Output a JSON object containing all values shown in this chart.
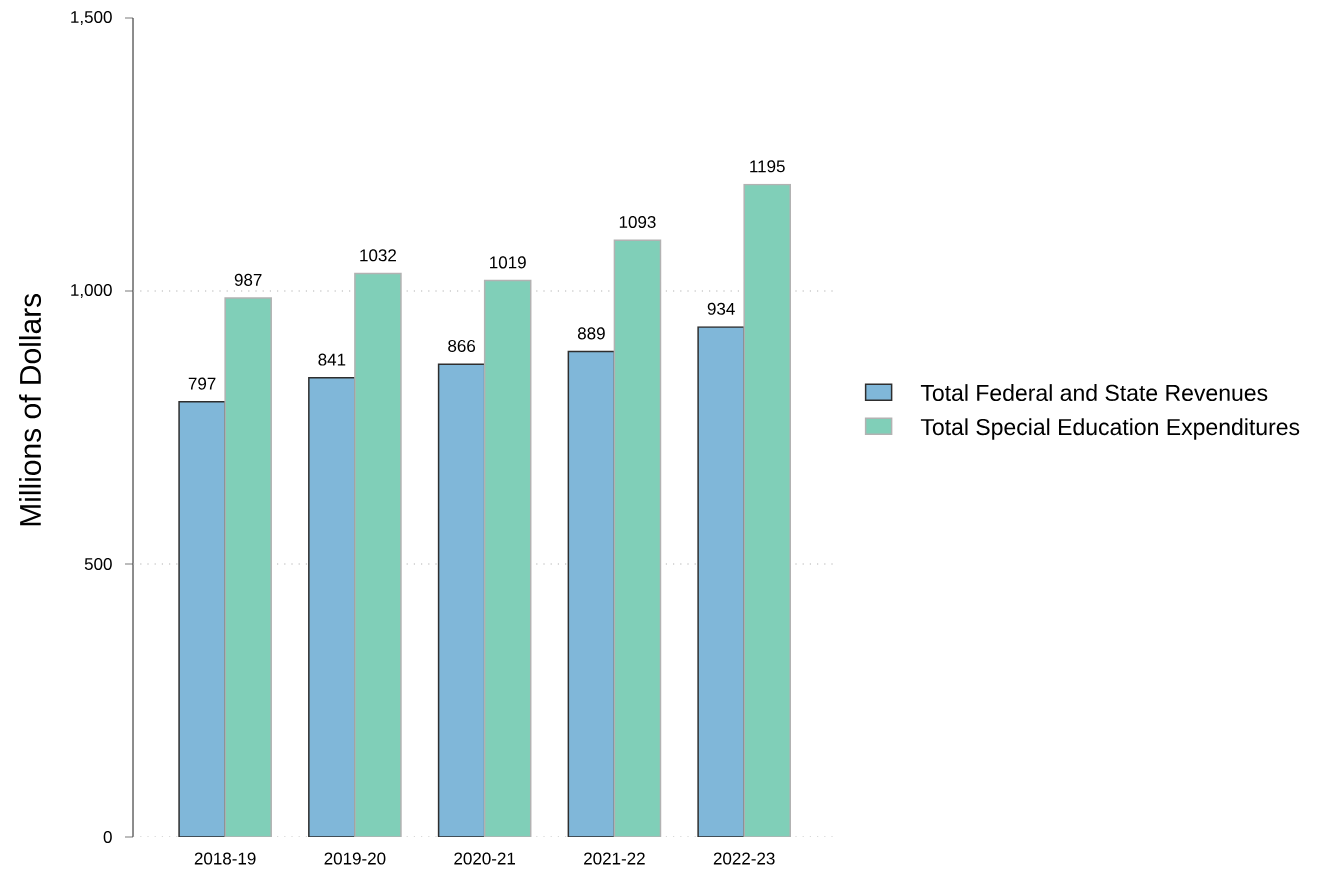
{
  "chart_data": {
    "type": "bar",
    "categories": [
      "2018-19",
      "2019-20",
      "2020-21",
      "2021-22",
      "2022-23"
    ],
    "series": [
      {
        "name": "Total Federal and State Revenues",
        "color": "#80b7d9",
        "values": [
          797,
          841,
          866,
          889,
          934
        ]
      },
      {
        "name": "Total Special Education Expenditures",
        "color": "#80cfb8",
        "values": [
          987,
          1032,
          1019,
          1093,
          1195
        ]
      }
    ],
    "ylabel": "Millions of Dollars",
    "ylim": [
      0,
      1500
    ],
    "yticks": [
      0,
      500,
      {
        "value": 1000,
        "label": "1,000"
      },
      {
        "value": 1500,
        "label": "1,500"
      }
    ],
    "grid": "y",
    "legend": "right",
    "data_labels": true
  }
}
